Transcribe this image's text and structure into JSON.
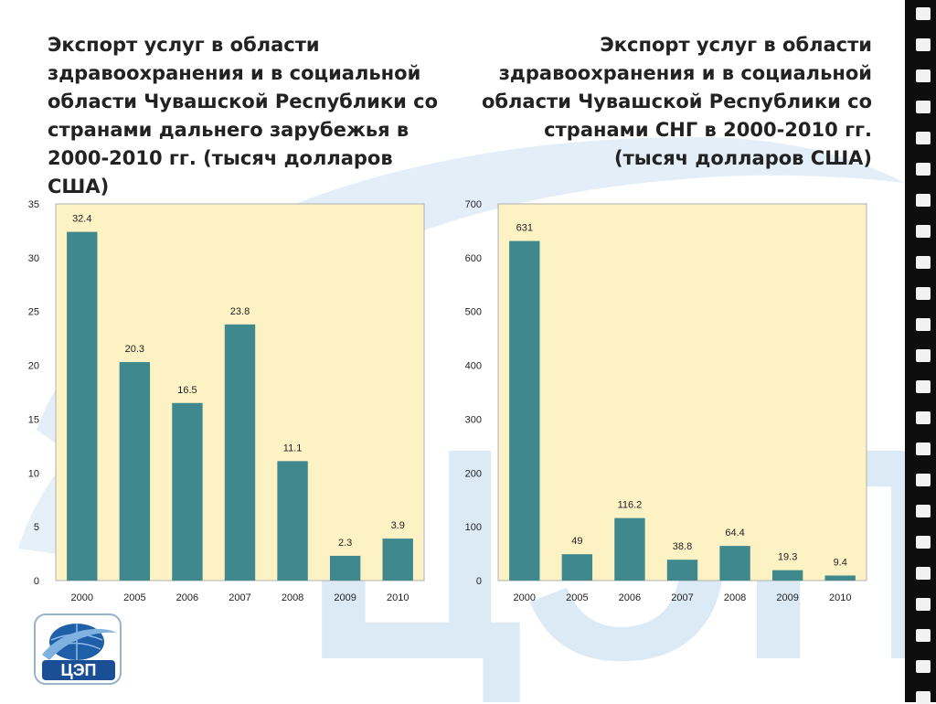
{
  "slide": {
    "title_left": "Экспорт услуг в области здравоохранения и в социальной области Чувашской Республики со странами дальнего зарубежья в 2000-2010 гг. (тысяч долларов США)",
    "title_right": "Экспорт услуг в области здравоохранения и в социальной области Чувашской Республики со странами СНГ в 2000-2010 гг. (тысяч долларов США)",
    "logo_text": "ЦЭП",
    "watermark_text": "ЦЭП"
  },
  "colors": {
    "bar": "#3f898e",
    "plot_bg": "#fdf2c4",
    "plot_border": "#b0b0b0",
    "watermark": "#cfe3f1"
  },
  "chart_data": [
    {
      "type": "bar",
      "title": "Экспорт услуг в области здравоохранения и в социальной области Чувашской Республики со странами дальнего зарубежья в 2000-2010 гг. (тысяч долларов США)",
      "categories": [
        "2000",
        "2005",
        "2006",
        "2007",
        "2008",
        "2009",
        "2010"
      ],
      "values": [
        32.4,
        20.3,
        16.5,
        23.8,
        11.1,
        2.3,
        3.9
      ],
      "data_labels": [
        "32.4",
        "20.3",
        "16.5",
        "23.8",
        "11.1",
        "2.3",
        "3.9"
      ],
      "yticks": [
        "0",
        "5",
        "10",
        "15",
        "20",
        "25",
        "30",
        "35"
      ],
      "ylim": [
        0,
        35
      ],
      "xlabel": "",
      "ylabel": "",
      "grid": false,
      "legend": "none"
    },
    {
      "type": "bar",
      "title": "Экспорт услуг в области здравоохранения и в социальной области Чувашской Республики со странами СНГ в 2000-2010 гг. (тысяч долларов США)",
      "categories": [
        "2000",
        "2005",
        "2006",
        "2007",
        "2008",
        "2009",
        "2010"
      ],
      "values": [
        631,
        49,
        116.2,
        38.8,
        64.4,
        19.3,
        9.4
      ],
      "data_labels": [
        "631",
        "49",
        "116.2",
        "38.8",
        "64.4",
        "19.3",
        "9.4"
      ],
      "yticks": [
        "0",
        "100",
        "200",
        "300",
        "400",
        "500",
        "600",
        "700"
      ],
      "ylim": [
        0,
        700
      ],
      "xlabel": "",
      "ylabel": "",
      "grid": false,
      "legend": "none"
    }
  ]
}
